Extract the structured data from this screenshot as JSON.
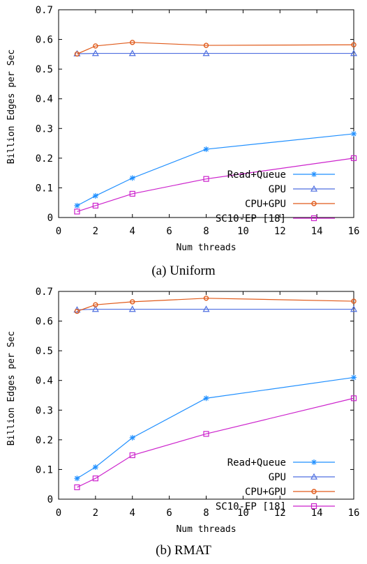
{
  "chart_data": [
    {
      "type": "line",
      "caption": "(a) Uniform",
      "xlabel": "Num threads",
      "ylabel": "Billion Edges per Sec",
      "xlim": [
        0,
        16
      ],
      "ylim": [
        0,
        0.7
      ],
      "xticks": [
        "0",
        "2",
        "4",
        "6",
        "8",
        "10",
        "12",
        "14",
        "16"
      ],
      "yticks": [
        "0",
        "0.1",
        "0.2",
        "0.3",
        "0.4",
        "0.5",
        "0.6",
        "0.7"
      ],
      "grid": false,
      "legend_position": "bottom-right",
      "series": [
        {
          "name": "Read+Queue",
          "color": "#1f8fff",
          "marker": "star",
          "x": [
            1,
            2,
            4,
            8,
            16
          ],
          "values": [
            0.04,
            0.073,
            0.133,
            0.23,
            0.282
          ]
        },
        {
          "name": "GPU",
          "color": "#4f6fe0",
          "marker": "triangle",
          "x": [
            1,
            2,
            4,
            8,
            16
          ],
          "values": [
            0.552,
            0.553,
            0.553,
            0.553,
            0.553
          ]
        },
        {
          "name": "CPU+GPU",
          "color": "#e05a1a",
          "marker": "circle",
          "x": [
            1,
            2,
            4,
            8,
            16
          ],
          "values": [
            0.551,
            0.578,
            0.59,
            0.58,
            0.582
          ]
        },
        {
          "name": "SC10-EP [18]",
          "color": "#cc22cc",
          "marker": "square",
          "x": [
            1,
            2,
            4,
            8,
            16
          ],
          "values": [
            0.02,
            0.04,
            0.08,
            0.13,
            0.2
          ]
        }
      ]
    },
    {
      "type": "line",
      "caption": "(b) RMAT",
      "xlabel": "Num threads",
      "ylabel": "Billion Edges per Sec",
      "xlim": [
        0,
        16
      ],
      "ylim": [
        0,
        0.7
      ],
      "xticks": [
        "0",
        "2",
        "4",
        "6",
        "8",
        "10",
        "12",
        "14",
        "16"
      ],
      "yticks": [
        "0",
        "0.1",
        "0.2",
        "0.3",
        "0.4",
        "0.5",
        "0.6",
        "0.7"
      ],
      "grid": false,
      "legend_position": "bottom-right",
      "series": [
        {
          "name": "Read+Queue",
          "color": "#1f8fff",
          "marker": "star",
          "x": [
            1,
            2,
            4,
            8,
            16
          ],
          "values": [
            0.07,
            0.108,
            0.207,
            0.34,
            0.41
          ]
        },
        {
          "name": "GPU",
          "color": "#4f6fe0",
          "marker": "triangle",
          "x": [
            1,
            2,
            4,
            8,
            16
          ],
          "values": [
            0.638,
            0.64,
            0.64,
            0.64,
            0.64
          ]
        },
        {
          "name": "CPU+GPU",
          "color": "#e05a1a",
          "marker": "circle",
          "x": [
            1,
            2,
            4,
            8,
            16
          ],
          "values": [
            0.633,
            0.655,
            0.665,
            0.677,
            0.667
          ]
        },
        {
          "name": "SC10-EP [18]",
          "color": "#cc22cc",
          "marker": "square",
          "x": [
            1,
            2,
            4,
            8,
            16
          ],
          "values": [
            0.04,
            0.07,
            0.148,
            0.22,
            0.34
          ]
        }
      ]
    }
  ]
}
